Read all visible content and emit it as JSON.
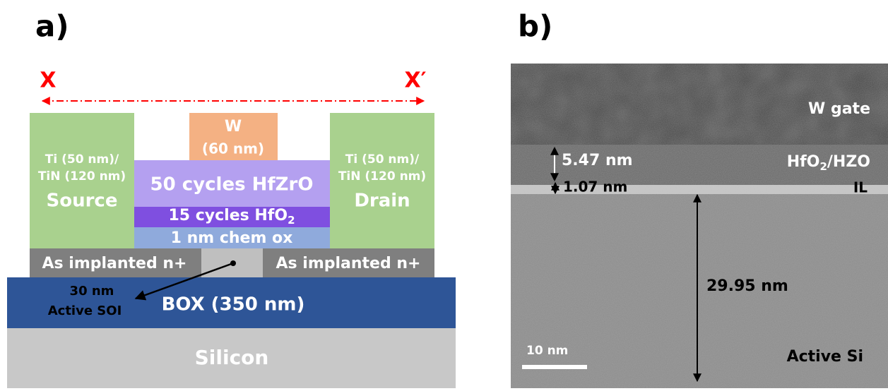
{
  "panel_a": {
    "label": "a)",
    "x_left": "X",
    "x_right": "X′",
    "gate": {
      "name": "W",
      "thickness": "(60 nm)"
    },
    "source": {
      "line1": "Ti (50 nm)/",
      "line2": "TiN (120 nm)",
      "name": "Source"
    },
    "drain": {
      "line1": "Ti (50 nm)/",
      "line2": "TiN (120 nm)",
      "name": "Drain"
    },
    "hfzro": "50 cycles HfZrO",
    "hfo2": {
      "text": "15 cycles HfO",
      "sub": "2"
    },
    "chem_ox": "1 nm chem ox",
    "implant_left": "As implanted n+",
    "implant_right": "As implanted n+",
    "soi": {
      "line1": "30 nm",
      "line2": "Active SOI"
    },
    "box": "BOX (350 nm)",
    "substrate": "Silicon"
  },
  "panel_b": {
    "label": "b)",
    "w_gate": "W gate",
    "hfo2_hzo": {
      "text": "HfO",
      "sub": "2",
      "rest": "/HZO"
    },
    "il": "IL",
    "d1": "5.47 nm",
    "d2": "1.07 nm",
    "d3": "29.95 nm",
    "scale": "10 nm",
    "active_si": "Active Si"
  }
}
